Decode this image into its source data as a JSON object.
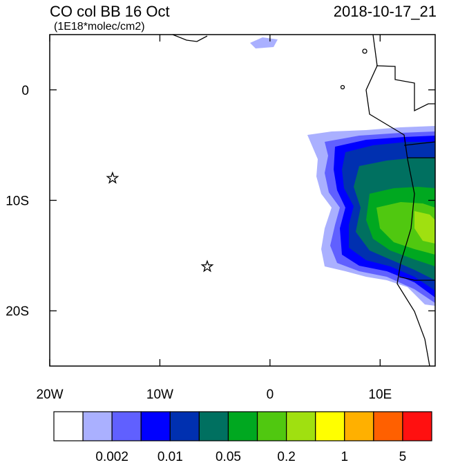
{
  "header": {
    "title": "CO col BB 16 Oct",
    "subtitle": "(1E18*molec/cm2)",
    "date": "2018-10-17_21"
  },
  "map": {
    "xlim": [
      -20,
      15
    ],
    "ylim": [
      -25,
      5
    ],
    "xticks": [
      {
        "value": -20,
        "label": "20W"
      },
      {
        "value": -10,
        "label": "10W"
      },
      0,
      {
        "value": 10,
        "label": "10E"
      }
    ],
    "yticks": [
      0,
      {
        "value": -10,
        "label": "10S"
      },
      {
        "value": -20,
        "label": "20S"
      }
    ],
    "markers": [
      {
        "lon": -14.3,
        "lat": -8
      },
      {
        "lon": -5.7,
        "lat": -16
      }
    ]
  },
  "colorbar": {
    "colors": [
      "#ffffff",
      "#aab0ff",
      "#6060ff",
      "#0000ff",
      "#0030b0",
      "#007060",
      "#00a820",
      "#50c810",
      "#a0e010",
      "#ffff00",
      "#ffb000",
      "#ff6000",
      "#ff1010"
    ],
    "labels": [
      "0.002",
      "0.01",
      "0.05",
      "0.2",
      "1",
      "5"
    ]
  }
}
